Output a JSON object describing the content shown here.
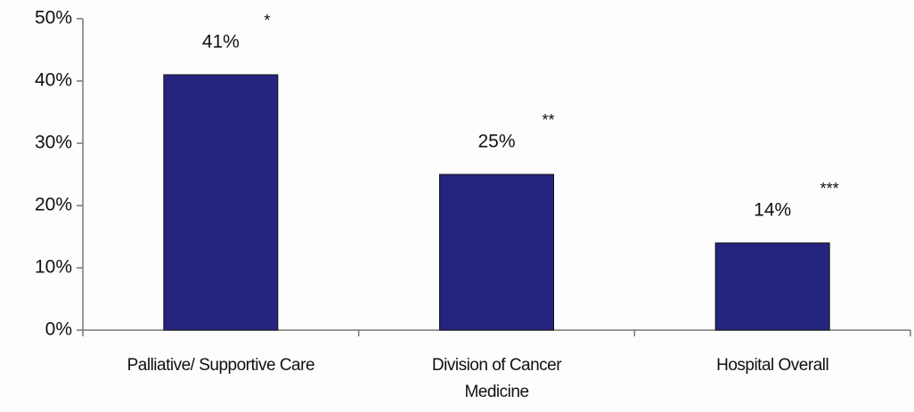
{
  "chart_data": {
    "type": "bar",
    "categories": [
      "Palliative/ Supportive Care",
      "Division of Cancer Medicine",
      "Hospital Overall"
    ],
    "values": [
      41,
      25,
      14
    ],
    "value_labels": [
      "41%",
      "25%",
      "14%"
    ],
    "annotations": [
      "*",
      "**",
      "***"
    ],
    "color": "#25247e",
    "ylim": [
      0,
      50
    ],
    "yticks": [
      {
        "value": 0,
        "label": "0%"
      },
      {
        "value": 10,
        "label": "10%"
      },
      {
        "value": 20,
        "label": "20%"
      },
      {
        "value": 30,
        "label": "30%"
      },
      {
        "value": 40,
        "label": "40%"
      },
      {
        "value": 50,
        "label": "50%"
      }
    ],
    "grid": false
  }
}
